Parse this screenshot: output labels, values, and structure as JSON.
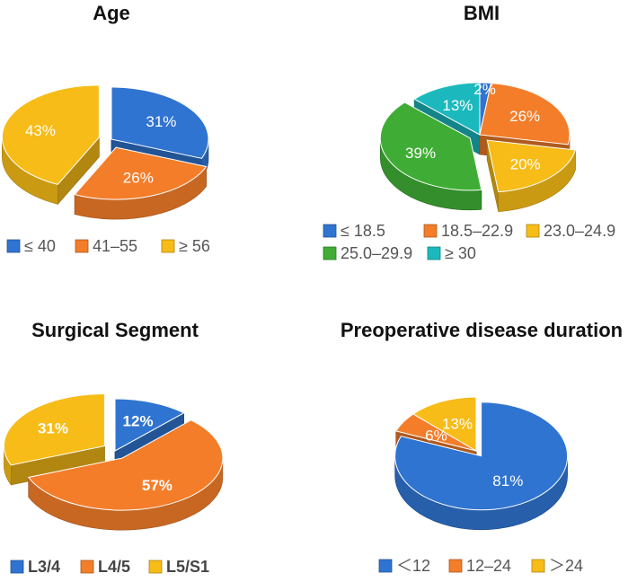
{
  "palette": {
    "blue": "#2f74d0",
    "orange": "#f47d2a",
    "yellow": "#f7bc17",
    "green": "#3fad35",
    "teal": "#1bb9bd"
  },
  "chart_data": [
    {
      "type": "pie",
      "title": "Age",
      "categories": [
        "≤ 40",
        "41–55",
        "≥ 56"
      ],
      "values": [
        31,
        26,
        43
      ],
      "value_labels": [
        "31%",
        "26%",
        "43%"
      ],
      "colors": [
        "blue",
        "orange",
        "yellow"
      ],
      "exploded": [
        false,
        true,
        true
      ],
      "legend": [
        "≤ 40",
        "41–55",
        "≥ 56"
      ]
    },
    {
      "type": "pie",
      "title": "BMI",
      "categories": [
        "≤ 18.5",
        "18.5–22.9",
        "23.0–24.9",
        "25.0–29.9",
        "≥ 30"
      ],
      "values": [
        2,
        26,
        20,
        39,
        13
      ],
      "value_labels": [
        "2%",
        "26%",
        "20%",
        "39%",
        "13%"
      ],
      "colors": [
        "blue",
        "orange",
        "yellow",
        "green",
        "teal"
      ],
      "exploded": [
        false,
        false,
        true,
        true,
        false
      ],
      "legend": [
        "≤ 18.5",
        "18.5–22.9",
        "23.0–24.9",
        "25.0–29.9",
        "≥ 30"
      ]
    },
    {
      "type": "pie",
      "title": "Surgical Segment",
      "categories": [
        "L3/4",
        "L4/5",
        "L5/S1"
      ],
      "values": [
        12,
        57,
        31
      ],
      "value_labels": [
        "12%",
        "57%",
        "31%"
      ],
      "colors": [
        "blue",
        "orange",
        "yellow"
      ],
      "exploded": [
        false,
        true,
        true
      ],
      "legend": [
        "L3/4",
        "L4/5",
        "L5/S1"
      ]
    },
    {
      "type": "pie",
      "title": "Preoperative disease duration",
      "categories": [
        "＜12",
        "12–24",
        "＞24"
      ],
      "values": [
        81,
        6,
        13
      ],
      "value_labels": [
        "81%",
        "6%",
        "13%"
      ],
      "colors": [
        "blue",
        "orange",
        "yellow"
      ],
      "exploded": [
        true,
        false,
        false
      ],
      "legend": [
        "＜12",
        "12–24",
        "＞24"
      ]
    }
  ]
}
